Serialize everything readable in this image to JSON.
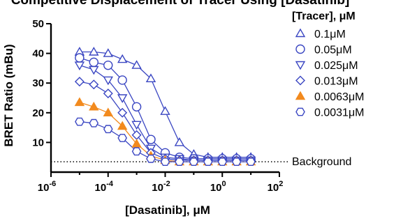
{
  "chart_data": {
    "type": "line",
    "title": "Competitive Displacement of Tracer Using [Dasatinib]",
    "xlabel": "[Dasatinib], μM",
    "ylabel": "BRET Ratio (mBu)",
    "x_scale": "log",
    "xlim": [
      1e-06,
      100
    ],
    "ylim": [
      0,
      50
    ],
    "x_ticks": [
      {
        "value": 1e-06,
        "base": "10",
        "exp": "-6"
      },
      {
        "value": 0.0001,
        "base": "10",
        "exp": "-4"
      },
      {
        "value": 0.01,
        "base": "10",
        "exp": "-2"
      },
      {
        "value": 1,
        "base": "10",
        "exp": "0"
      },
      {
        "value": 100,
        "base": "10",
        "exp": "2"
      }
    ],
    "y_ticks": [
      {
        "value": 10,
        "label": "10"
      },
      {
        "value": 20,
        "label": "20"
      },
      {
        "value": 30,
        "label": "30"
      },
      {
        "value": 40,
        "label": "40"
      },
      {
        "value": 50,
        "label": "50"
      }
    ],
    "legend_title": "[Tracer], μM",
    "legend_position": "right",
    "grid": false,
    "x": [
      1e-05,
      3.16e-05,
      0.0001,
      0.000316,
      0.001,
      0.00316,
      0.01,
      0.0316,
      0.1,
      0.316,
      1,
      3.16,
      10
    ],
    "series": [
      {
        "name": "0.1μM",
        "marker": "triangle-up",
        "color": "#3a46c2",
        "values": [
          40.5,
          40.5,
          40.0,
          38.0,
          36.0,
          31.5,
          20.5,
          10.0,
          6.0,
          5.0,
          5.0,
          5.0,
          5.0
        ]
      },
      {
        "name": "0.05μM",
        "marker": "circle",
        "color": "#3a46c2",
        "values": [
          38.5,
          37.0,
          36.0,
          31.0,
          22.0,
          11.0,
          6.5,
          5.0,
          4.5,
          4.5,
          4.5,
          4.5,
          4.5
        ]
      },
      {
        "name": "0.025μM",
        "marker": "triangle-down",
        "color": "#3a46c2",
        "values": [
          36.0,
          34.5,
          31.0,
          25.0,
          16.0,
          8.0,
          5.0,
          4.5,
          4.0,
          4.0,
          4.0,
          4.0,
          4.0
        ]
      },
      {
        "name": "0.013μM",
        "marker": "diamond",
        "color": "#3a46c2",
        "values": [
          30.5,
          29.5,
          26.5,
          20.0,
          12.5,
          6.5,
          4.5,
          4.0,
          4.0,
          4.0,
          4.0,
          4.0,
          4.0
        ]
      },
      {
        "name": "0.0063μM",
        "marker": "triangle-up-filled",
        "color": "#f28a1e",
        "values": [
          23.5,
          22.0,
          20.0,
          15.5,
          9.5,
          5.5,
          4.0,
          3.5,
          3.5,
          3.5,
          3.5,
          3.5,
          3.5
        ]
      },
      {
        "name": "0.0031μM",
        "marker": "hexagon",
        "color": "#3a46c2",
        "values": [
          17.0,
          16.5,
          14.5,
          11.5,
          7.0,
          4.5,
          3.5,
          3.5,
          3.5,
          3.5,
          3.5,
          3.5,
          3.5
        ]
      }
    ],
    "background": {
      "value": 3.5,
      "label": "Background"
    }
  }
}
